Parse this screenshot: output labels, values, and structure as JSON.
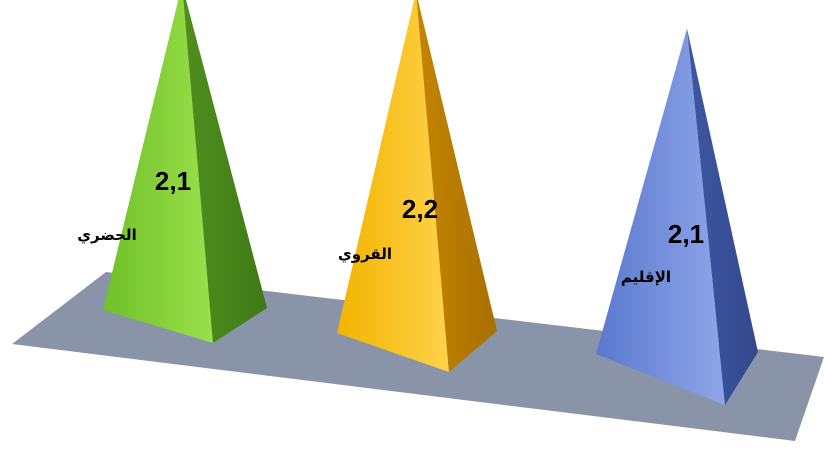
{
  "chart_data": {
    "type": "bar",
    "shape": "pyramid",
    "categories": [
      "الحضري",
      "القروي",
      "الإقليم"
    ],
    "values": [
      2.1,
      2.2,
      2.1
    ],
    "value_labels": [
      "2,1",
      "2,2",
      "2,1"
    ],
    "colors": [
      "#7cc832",
      "#f5b000",
      "#6a86d6"
    ],
    "floor_color": "#8a94a8",
    "title": "",
    "xlabel": "",
    "ylabel": "",
    "grid": false,
    "legend": "none"
  }
}
